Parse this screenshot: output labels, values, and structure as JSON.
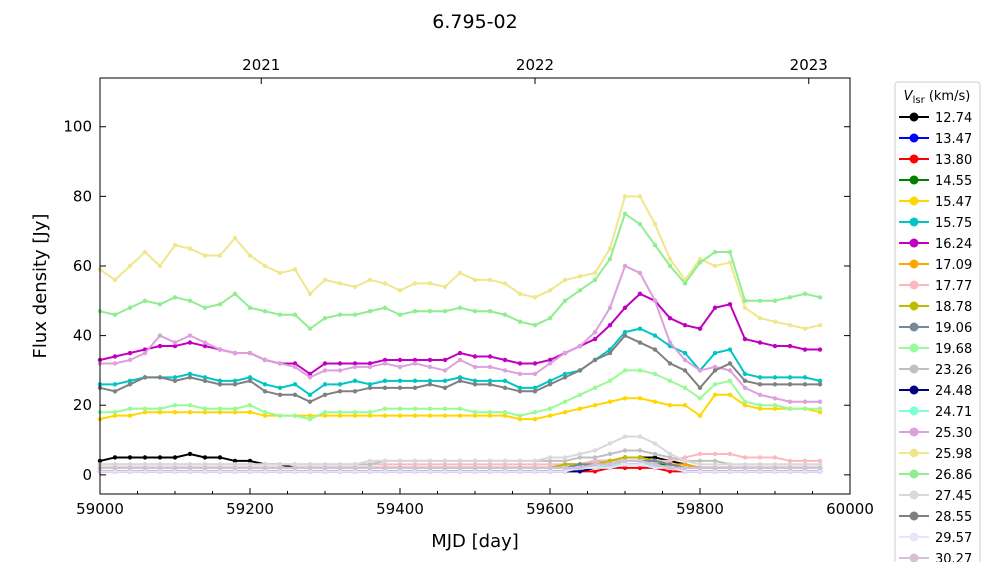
{
  "chart_data": {
    "type": "line",
    "title": "6.795-02",
    "xlabel": "MJD [day]",
    "ylabel": "Flux density [Jy]",
    "xlim": [
      59000,
      60000
    ],
    "ylim": [
      -5.5,
      114
    ],
    "xticks": [
      59000,
      59200,
      59400,
      59600,
      59800,
      60000
    ],
    "yticks": [
      0,
      20,
      40,
      60,
      80,
      100
    ],
    "top_axis": {
      "ticks": [
        {
          "label": "2021",
          "mjd": 59215
        },
        {
          "label": "2022",
          "mjd": 59580
        },
        {
          "label": "2023",
          "mjd": 59945
        }
      ]
    },
    "legend": {
      "title_main": "V",
      "title_sub": "lsr",
      "title_unit": " (km/s)",
      "placement": "outside-right"
    },
    "x": [
      59000,
      59020,
      59040,
      59060,
      59080,
      59100,
      59120,
      59140,
      59160,
      59180,
      59200,
      59220,
      59240,
      59260,
      59280,
      59300,
      59320,
      59340,
      59360,
      59380,
      59400,
      59420,
      59440,
      59460,
      59480,
      59500,
      59520,
      59540,
      59560,
      59580,
      59600,
      59620,
      59640,
      59660,
      59680,
      59700,
      59720,
      59740,
      59760,
      59780,
      59800,
      59820,
      59840,
      59860,
      59880,
      59900,
      59920,
      59940,
      59960
    ],
    "series": [
      {
        "name": "12.74",
        "color": "#000000",
        "values": [
          4,
          5,
          5,
          5,
          5,
          5,
          6,
          5,
          5,
          4,
          4,
          3,
          3,
          2,
          2,
          2,
          2,
          2,
          2,
          2,
          2,
          2,
          2,
          2,
          2,
          2,
          2,
          2,
          2,
          2,
          2,
          3,
          3,
          4,
          4,
          5,
          5,
          5,
          4,
          3,
          2,
          2,
          2,
          2,
          2,
          2,
          2,
          2,
          2
        ]
      },
      {
        "name": "13.47",
        "color": "#0000ff",
        "values": [
          1,
          1,
          1,
          1,
          1,
          1,
          1,
          1,
          1,
          1,
          1,
          1,
          1,
          1,
          1,
          1,
          1,
          1,
          1,
          1,
          1,
          1,
          1,
          1,
          1,
          1,
          1,
          1,
          1,
          1,
          1,
          1,
          2,
          2,
          2,
          3,
          3,
          2,
          2,
          1,
          1,
          1,
          1,
          1,
          1,
          1,
          1,
          1,
          1
        ]
      },
      {
        "name": "13.80",
        "color": "#ff0000",
        "values": [
          1,
          1,
          1,
          1,
          1,
          1,
          1,
          1,
          1,
          1,
          1,
          1,
          1,
          1,
          1,
          1,
          1,
          1,
          1,
          1,
          1,
          1,
          1,
          1,
          1,
          1,
          1,
          1,
          1,
          1,
          1,
          1,
          1,
          1,
          2,
          2,
          2,
          2,
          1,
          1,
          1,
          1,
          1,
          1,
          1,
          1,
          1,
          1,
          1
        ]
      },
      {
        "name": "14.55",
        "color": "#008000",
        "values": [
          2,
          2,
          2,
          2,
          2,
          2,
          2,
          2,
          2,
          2,
          2,
          2,
          2,
          2,
          2,
          2,
          2,
          2,
          2,
          2,
          2,
          2,
          2,
          2,
          2,
          2,
          2,
          2,
          2,
          2,
          2,
          2,
          2,
          3,
          3,
          4,
          4,
          3,
          3,
          2,
          2,
          2,
          2,
          2,
          2,
          2,
          2,
          2,
          2
        ]
      },
      {
        "name": "15.47",
        "color": "#ffd700",
        "values": [
          16,
          17,
          17,
          18,
          18,
          18,
          18,
          18,
          18,
          18,
          18,
          17,
          17,
          17,
          17,
          17,
          17,
          17,
          17,
          17,
          17,
          17,
          17,
          17,
          17,
          17,
          17,
          17,
          16,
          16,
          17,
          18,
          19,
          20,
          21,
          22,
          22,
          21,
          20,
          20,
          17,
          23,
          23,
          20,
          19,
          19,
          19,
          19,
          18
        ]
      },
      {
        "name": "15.75",
        "color": "#00c5c5",
        "values": [
          26,
          26,
          27,
          28,
          28,
          28,
          29,
          28,
          27,
          27,
          28,
          26,
          25,
          26,
          23,
          26,
          26,
          27,
          26,
          27,
          27,
          27,
          27,
          27,
          28,
          27,
          27,
          27,
          25,
          25,
          27,
          29,
          30,
          33,
          36,
          41,
          42,
          40,
          37,
          35,
          30,
          35,
          36,
          29,
          28,
          28,
          28,
          28,
          27
        ]
      },
      {
        "name": "16.24",
        "color": "#c000c0",
        "values": [
          33,
          34,
          35,
          36,
          37,
          37,
          38,
          37,
          36,
          35,
          35,
          33,
          32,
          32,
          29,
          32,
          32,
          32,
          32,
          33,
          33,
          33,
          33,
          33,
          35,
          34,
          34,
          33,
          32,
          32,
          33,
          35,
          37,
          39,
          43,
          48,
          52,
          50,
          45,
          43,
          42,
          48,
          49,
          39,
          38,
          37,
          37,
          36,
          36
        ]
      },
      {
        "name": "17.09",
        "color": "#ffa500",
        "values": [
          2,
          2,
          2,
          2,
          2,
          2,
          2,
          2,
          2,
          2,
          2,
          2,
          2,
          2,
          2,
          2,
          2,
          2,
          2,
          2,
          2,
          2,
          2,
          2,
          2,
          2,
          2,
          2,
          2,
          2,
          2,
          3,
          3,
          3,
          4,
          5,
          5,
          4,
          3,
          3,
          2,
          2,
          2,
          2,
          2,
          2,
          2,
          2,
          2
        ]
      },
      {
        "name": "17.77",
        "color": "#ffb6c1",
        "values": [
          3,
          3,
          3,
          3,
          3,
          3,
          3,
          3,
          3,
          3,
          3,
          3,
          3,
          3,
          3,
          3,
          3,
          3,
          3,
          3,
          3,
          3,
          3,
          3,
          3,
          3,
          3,
          3,
          3,
          3,
          3,
          3,
          3,
          4,
          4,
          4,
          4,
          4,
          4,
          5,
          6,
          6,
          6,
          5,
          5,
          5,
          4,
          4,
          4
        ]
      },
      {
        "name": "18.78",
        "color": "#bdbd00",
        "values": [
          2,
          2,
          2,
          2,
          2,
          2,
          2,
          2,
          2,
          2,
          2,
          2,
          2,
          2,
          2,
          2,
          2,
          2,
          2,
          2,
          2,
          2,
          2,
          2,
          2,
          2,
          2,
          2,
          2,
          2,
          2,
          3,
          3,
          3,
          4,
          5,
          5,
          4,
          3,
          2,
          2,
          2,
          2,
          2,
          2,
          2,
          2,
          2,
          2
        ]
      },
      {
        "name": "19.06",
        "color": "#778899",
        "values": [
          2,
          2,
          2,
          2,
          2,
          2,
          2,
          2,
          2,
          2,
          2,
          2,
          2,
          2,
          2,
          2,
          2,
          2,
          2,
          2,
          2,
          2,
          2,
          2,
          2,
          2,
          2,
          2,
          2,
          2,
          2,
          2,
          3,
          3,
          3,
          4,
          4,
          4,
          3,
          2,
          2,
          2,
          2,
          2,
          2,
          2,
          2,
          2,
          2
        ]
      },
      {
        "name": "19.68",
        "color": "#98fb98",
        "values": [
          18,
          18,
          19,
          19,
          19,
          20,
          20,
          19,
          19,
          19,
          20,
          18,
          17,
          17,
          16,
          18,
          18,
          18,
          18,
          19,
          19,
          19,
          19,
          19,
          19,
          18,
          18,
          18,
          17,
          18,
          19,
          21,
          23,
          25,
          27,
          30,
          30,
          29,
          27,
          25,
          22,
          26,
          27,
          21,
          20,
          20,
          19,
          19,
          19
        ]
      },
      {
        "name": "23.26",
        "color": "#c0c0c0",
        "values": [
          3,
          3,
          3,
          3,
          3,
          3,
          3,
          3,
          3,
          3,
          3,
          3,
          3,
          3,
          3,
          3,
          3,
          3,
          3,
          4,
          4,
          4,
          4,
          4,
          4,
          4,
          4,
          4,
          4,
          4,
          4,
          4,
          5,
          5,
          6,
          7,
          7,
          6,
          5,
          4,
          4,
          4,
          3,
          3,
          3,
          3,
          3,
          3,
          3
        ]
      },
      {
        "name": "24.48",
        "color": "#000080",
        "values": [
          1,
          1,
          1,
          1,
          1,
          1,
          1,
          1,
          1,
          1,
          1,
          1,
          1,
          1,
          1,
          1,
          1,
          1,
          1,
          1,
          1,
          1,
          1,
          1,
          1,
          1,
          1,
          1,
          1,
          1,
          1,
          1,
          1,
          2,
          2,
          3,
          3,
          2,
          2,
          1,
          1,
          1,
          1,
          1,
          1,
          1,
          1,
          1,
          1
        ]
      },
      {
        "name": "24.71",
        "color": "#7fffd4",
        "values": [
          2,
          2,
          2,
          2,
          2,
          2,
          2,
          2,
          2,
          2,
          2,
          2,
          2,
          2,
          2,
          2,
          2,
          2,
          2,
          2,
          2,
          2,
          2,
          2,
          2,
          2,
          2,
          2,
          2,
          2,
          2,
          2,
          2,
          2,
          3,
          3,
          3,
          3,
          2,
          2,
          2,
          2,
          2,
          2,
          2,
          2,
          2,
          2,
          2
        ]
      },
      {
        "name": "25.30",
        "color": "#dda0dd",
        "values": [
          32,
          32,
          33,
          35,
          40,
          38,
          40,
          38,
          36,
          35,
          35,
          33,
          32,
          31,
          28,
          30,
          30,
          31,
          31,
          32,
          31,
          32,
          31,
          30,
          33,
          31,
          31,
          30,
          29,
          29,
          32,
          35,
          37,
          41,
          48,
          60,
          58,
          50,
          38,
          33,
          30,
          31,
          30,
          25,
          23,
          22,
          21,
          21,
          21
        ]
      },
      {
        "name": "25.98",
        "color": "#f0e68c",
        "values": [
          59,
          56,
          60,
          64,
          60,
          66,
          65,
          63,
          63,
          68,
          63,
          60,
          58,
          59,
          52,
          56,
          55,
          54,
          56,
          55,
          53,
          55,
          55,
          54,
          58,
          56,
          56,
          55,
          52,
          51,
          53,
          56,
          57,
          58,
          65,
          80,
          80,
          72,
          62,
          56,
          62,
          60,
          61,
          48,
          45,
          44,
          43,
          42,
          43
        ]
      },
      {
        "name": "26.86",
        "color": "#90ee90",
        "values": [
          47,
          46,
          48,
          50,
          49,
          51,
          50,
          48,
          49,
          52,
          48,
          47,
          46,
          46,
          42,
          45,
          46,
          46,
          47,
          48,
          46,
          47,
          47,
          47,
          48,
          47,
          47,
          46,
          44,
          43,
          45,
          50,
          53,
          56,
          62,
          75,
          72,
          66,
          60,
          55,
          61,
          64,
          64,
          50,
          50,
          50,
          51,
          52,
          51
        ]
      },
      {
        "name": "27.45",
        "color": "#d9d9d9",
        "values": [
          3,
          3,
          3,
          3,
          3,
          3,
          3,
          3,
          3,
          3,
          3,
          3,
          3,
          3,
          3,
          3,
          3,
          3,
          4,
          4,
          4,
          4,
          4,
          4,
          4,
          4,
          4,
          4,
          4,
          4,
          5,
          5,
          6,
          7,
          9,
          11,
          11,
          9,
          6,
          4,
          3,
          3,
          3,
          3,
          3,
          3,
          3,
          3,
          3
        ]
      },
      {
        "name": "28.55",
        "color": "#808080",
        "values": [
          25,
          24,
          26,
          28,
          28,
          27,
          28,
          27,
          26,
          26,
          27,
          24,
          23,
          23,
          21,
          23,
          24,
          24,
          25,
          25,
          25,
          25,
          26,
          25,
          27,
          26,
          26,
          25,
          24,
          24,
          26,
          28,
          30,
          33,
          35,
          40,
          38,
          36,
          32,
          30,
          25,
          30,
          32,
          27,
          26,
          26,
          26,
          26,
          26
        ]
      },
      {
        "name": "29.57",
        "color": "#e6e6fa",
        "values": [
          1,
          1,
          1,
          1,
          1,
          1,
          1,
          1,
          1,
          1,
          1,
          1,
          1,
          1,
          1,
          1,
          1,
          1,
          1,
          1,
          1,
          1,
          1,
          1,
          1,
          1,
          1,
          1,
          1,
          1,
          1,
          1,
          2,
          2,
          2,
          3,
          3,
          2,
          2,
          1,
          1,
          1,
          1,
          1,
          1,
          1,
          1,
          1,
          1
        ]
      },
      {
        "name": "30.27",
        "color": "#d8bfd8",
        "values": [
          2,
          2,
          2,
          2,
          2,
          2,
          2,
          2,
          2,
          2,
          2,
          2,
          2,
          2,
          2,
          2,
          2,
          2,
          2,
          2,
          2,
          2,
          2,
          2,
          2,
          2,
          2,
          2,
          2,
          2,
          2,
          2,
          2,
          3,
          3,
          4,
          4,
          3,
          2,
          2,
          2,
          2,
          2,
          2,
          2,
          2,
          2,
          2,
          2
        ]
      }
    ]
  }
}
